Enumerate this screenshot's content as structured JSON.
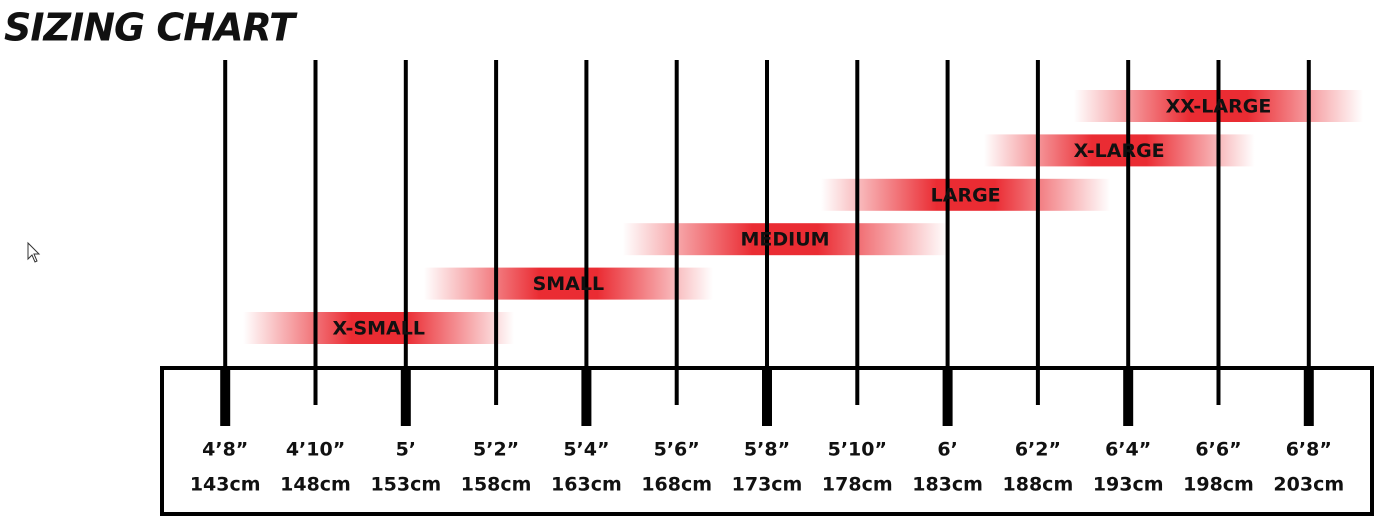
{
  "chart_data": {
    "type": "range",
    "title": "SIZING CHART",
    "bars": [
      {
        "name": "X-SMALL",
        "start": 144,
        "end": 159
      },
      {
        "name": "SMALL",
        "start": 154,
        "end": 170
      },
      {
        "name": "MEDIUM",
        "start": 165,
        "end": 183
      },
      {
        "name": "LARGE",
        "start": 176,
        "end": 192
      },
      {
        "name": "X-LARGE",
        "start": 185,
        "end": 200
      },
      {
        "name": "XX-LARGE",
        "start": 190,
        "end": 206
      }
    ],
    "color": "#e8141c",
    "xlim": [
      139.5,
      206.5
    ],
    "xticks": [
      {
        "value": 143,
        "label": "4’8”"
      },
      {
        "value": 148,
        "label": "4’10”"
      },
      {
        "value": 153,
        "label": "5’"
      },
      {
        "value": 158,
        "label": "5’2”"
      },
      {
        "value": 163,
        "label": "5’4”"
      },
      {
        "value": 168,
        "label": "5’6”"
      },
      {
        "value": 173,
        "label": "5’8”"
      },
      {
        "value": 178,
        "label": "5’10”"
      },
      {
        "value": 183,
        "label": "6’"
      },
      {
        "value": 188,
        "label": "6’2”"
      },
      {
        "value": 193,
        "label": "6’4”"
      },
      {
        "value": 198,
        "label": "6’6”"
      },
      {
        "value": 203,
        "label": "6’8”"
      }
    ],
    "x2ticks": [
      {
        "value": 143,
        "label": "143cm"
      },
      {
        "value": 148,
        "label": "148cm"
      },
      {
        "value": 153,
        "label": "153cm"
      },
      {
        "value": 158,
        "label": "158cm"
      },
      {
        "value": 163,
        "label": "163cm"
      },
      {
        "value": 168,
        "label": "168cm"
      },
      {
        "value": 173,
        "label": "173cm"
      },
      {
        "value": 178,
        "label": "178cm"
      },
      {
        "value": 183,
        "label": "183cm"
      },
      {
        "value": 188,
        "label": "188cm"
      },
      {
        "value": 193,
        "label": "193cm"
      },
      {
        "value": 198,
        "label": "198cm"
      },
      {
        "value": 203,
        "label": "203cm"
      }
    ]
  }
}
